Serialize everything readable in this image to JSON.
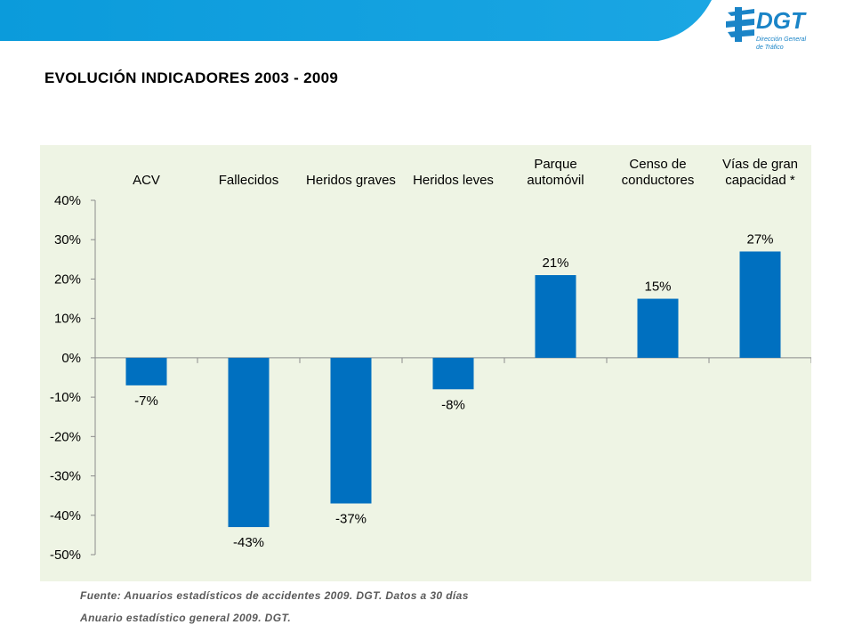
{
  "header": {
    "title": "EVOLUCIÓN INDICADORES 2003 - 2009",
    "logo": {
      "name": "DGT",
      "subtitle_line1": "Dirección General",
      "subtitle_line2": "de Tráfico"
    }
  },
  "colors": {
    "bar": "#0070c0",
    "panel": "#eef4e4",
    "header_blue": "#0d9ddc",
    "logo_blue": "#1a84c7"
  },
  "chart_data": {
    "type": "bar",
    "categories": [
      [
        "ACV"
      ],
      [
        "Fallecidos"
      ],
      [
        "Heridos graves"
      ],
      [
        "Heridos leves"
      ],
      [
        "Parque",
        "automóvil"
      ],
      [
        "Censo de",
        "conductores"
      ],
      [
        "Vías de gran",
        "capacidad *"
      ]
    ],
    "values": [
      -7,
      -43,
      -37,
      -8,
      21,
      15,
      27
    ],
    "value_labels": [
      "-7%",
      "-43%",
      "-37%",
      "-8%",
      "21%",
      "15%",
      "27%"
    ],
    "yticks": [
      40,
      30,
      20,
      10,
      0,
      -10,
      -20,
      -30,
      -40,
      -50
    ],
    "ytick_labels": [
      "40%",
      "30%",
      "20%",
      "10%",
      "0%",
      "-10%",
      "-20%",
      "-30%",
      "-40%",
      "-50%"
    ],
    "ylim": [
      -50,
      40
    ],
    "grid": false,
    "legend": "none"
  },
  "footer": {
    "source_line1": "Fuente: Anuarios estadísticos de accidentes 2009. DGT. Datos a 30 días",
    "source_line2": "Anuario estadístico general 2009. DGT."
  }
}
